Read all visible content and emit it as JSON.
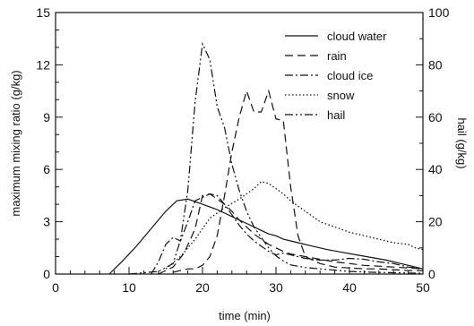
{
  "chart_data": {
    "type": "line",
    "xlabel": "time (min)",
    "ylabel": "maximum mixing ratio (g/kg)",
    "y2label": "hail (g/kg)",
    "xlim": [
      0,
      50
    ],
    "ylim": [
      0,
      15
    ],
    "y2lim": [
      0,
      100
    ],
    "xticks": [
      "0",
      "10",
      "20",
      "30",
      "40",
      "50"
    ],
    "yticks": [
      "0",
      "3",
      "6",
      "9",
      "12",
      "15"
    ],
    "y2ticks": [
      "0",
      "20",
      "40",
      "60",
      "80",
      "100"
    ],
    "legend_position": "top-right",
    "series": [
      {
        "name": "cloud water",
        "axis": "left",
        "dash": "solid",
        "x": [
          7.3,
          9,
          11,
          13,
          15,
          16.5,
          18,
          20,
          22,
          24,
          26,
          28,
          29,
          30,
          31,
          33,
          35,
          37,
          39,
          41,
          43,
          45,
          47,
          49,
          50
        ],
        "y": [
          0,
          0.7,
          1.6,
          2.6,
          3.6,
          4.2,
          4.3,
          4.0,
          3.7,
          3.3,
          2.9,
          2.5,
          2.3,
          2.2,
          2.0,
          1.8,
          1.6,
          1.4,
          1.25,
          1.1,
          0.95,
          0.8,
          0.6,
          0.4,
          0.3
        ]
      },
      {
        "name": "rain",
        "axis": "left",
        "dash": "long-dash",
        "x": [
          14,
          16,
          17.5,
          19,
          20,
          21,
          22,
          23,
          24,
          25,
          26,
          27,
          28,
          29,
          30,
          31,
          32,
          34,
          36,
          38,
          40,
          42,
          44,
          46,
          48,
          50
        ],
        "y": [
          0,
          0.4,
          1.2,
          2.6,
          4.5,
          4.6,
          4.3,
          4.0,
          3.6,
          3.1,
          2.7,
          2.3,
          2.0,
          1.7,
          1.5,
          1.3,
          1.15,
          1.0,
          0.85,
          0.7,
          0.6,
          0.5,
          0.45,
          0.4,
          0.35,
          0.3
        ]
      },
      {
        "name": "cloud ice",
        "axis": "left",
        "dash": "dash-dot",
        "x": [
          13,
          14,
          15,
          16,
          17,
          18,
          19,
          20,
          21,
          22,
          23,
          24,
          25,
          26,
          27,
          28,
          29,
          30,
          31,
          32,
          34,
          36,
          38,
          40,
          42,
          44,
          46,
          48,
          50
        ],
        "y": [
          0,
          0.7,
          1.7,
          2.1,
          1.9,
          3.0,
          4.2,
          4.4,
          4.6,
          4.5,
          4.0,
          3.4,
          2.8,
          2.3,
          1.9,
          1.6,
          1.3,
          1.1,
          1.2,
          1.1,
          0.9,
          0.8,
          0.8,
          0.9,
          0.85,
          0.7,
          0.6,
          0.4,
          0.3
        ]
      },
      {
        "name": "snow",
        "axis": "left",
        "dash": "dotted",
        "x": [
          15,
          17,
          19,
          21,
          23,
          25,
          27,
          28,
          29,
          30,
          31,
          32,
          33,
          34,
          35,
          36,
          38,
          40,
          42,
          44,
          46,
          48,
          49,
          50
        ],
        "y": [
          0.3,
          1.0,
          2.0,
          3.2,
          3.8,
          4.3,
          4.9,
          5.3,
          5.2,
          4.9,
          4.6,
          4.2,
          3.9,
          3.6,
          3.3,
          3.0,
          2.7,
          2.4,
          2.2,
          2.0,
          1.8,
          1.7,
          1.5,
          1.4
        ]
      },
      {
        "name": "hail",
        "axis": "right",
        "dash": "dash-dot-dot",
        "x": [
          10,
          12,
          14,
          16,
          17,
          18,
          19,
          20,
          21,
          22,
          23,
          24,
          25,
          26,
          27,
          28,
          29,
          30,
          31,
          32,
          34,
          36,
          38,
          40,
          42,
          44,
          46,
          48,
          50
        ],
        "y": [
          0,
          0.5,
          1,
          4,
          13,
          32,
          66,
          88,
          82,
          64,
          56,
          42,
          32,
          24,
          18,
          14,
          10,
          7,
          5,
          3.5,
          2.5,
          2,
          1.5,
          1,
          0.8,
          0.6,
          0.5,
          0.4,
          0.3
        ]
      }
    ],
    "extra_curve": {
      "axis": "left",
      "dash": "long-dash",
      "x": [
        16,
        17,
        18,
        19,
        20,
        21,
        22,
        23,
        24,
        25,
        26,
        27,
        28,
        29,
        30,
        31,
        32,
        33,
        34,
        36,
        38,
        40,
        42,
        44,
        46,
        48,
        50
      ],
      "y": [
        0.1,
        0.2,
        0.3,
        0.3,
        0.5,
        1.0,
        2.2,
        4.5,
        7.0,
        9.0,
        10.5,
        9.3,
        9.3,
        10.5,
        8.9,
        8.8,
        5.0,
        2.2,
        1.0,
        0.6,
        0.4,
        0.35,
        0.3,
        0.3,
        0.25,
        0.2,
        0.2
      ]
    }
  }
}
